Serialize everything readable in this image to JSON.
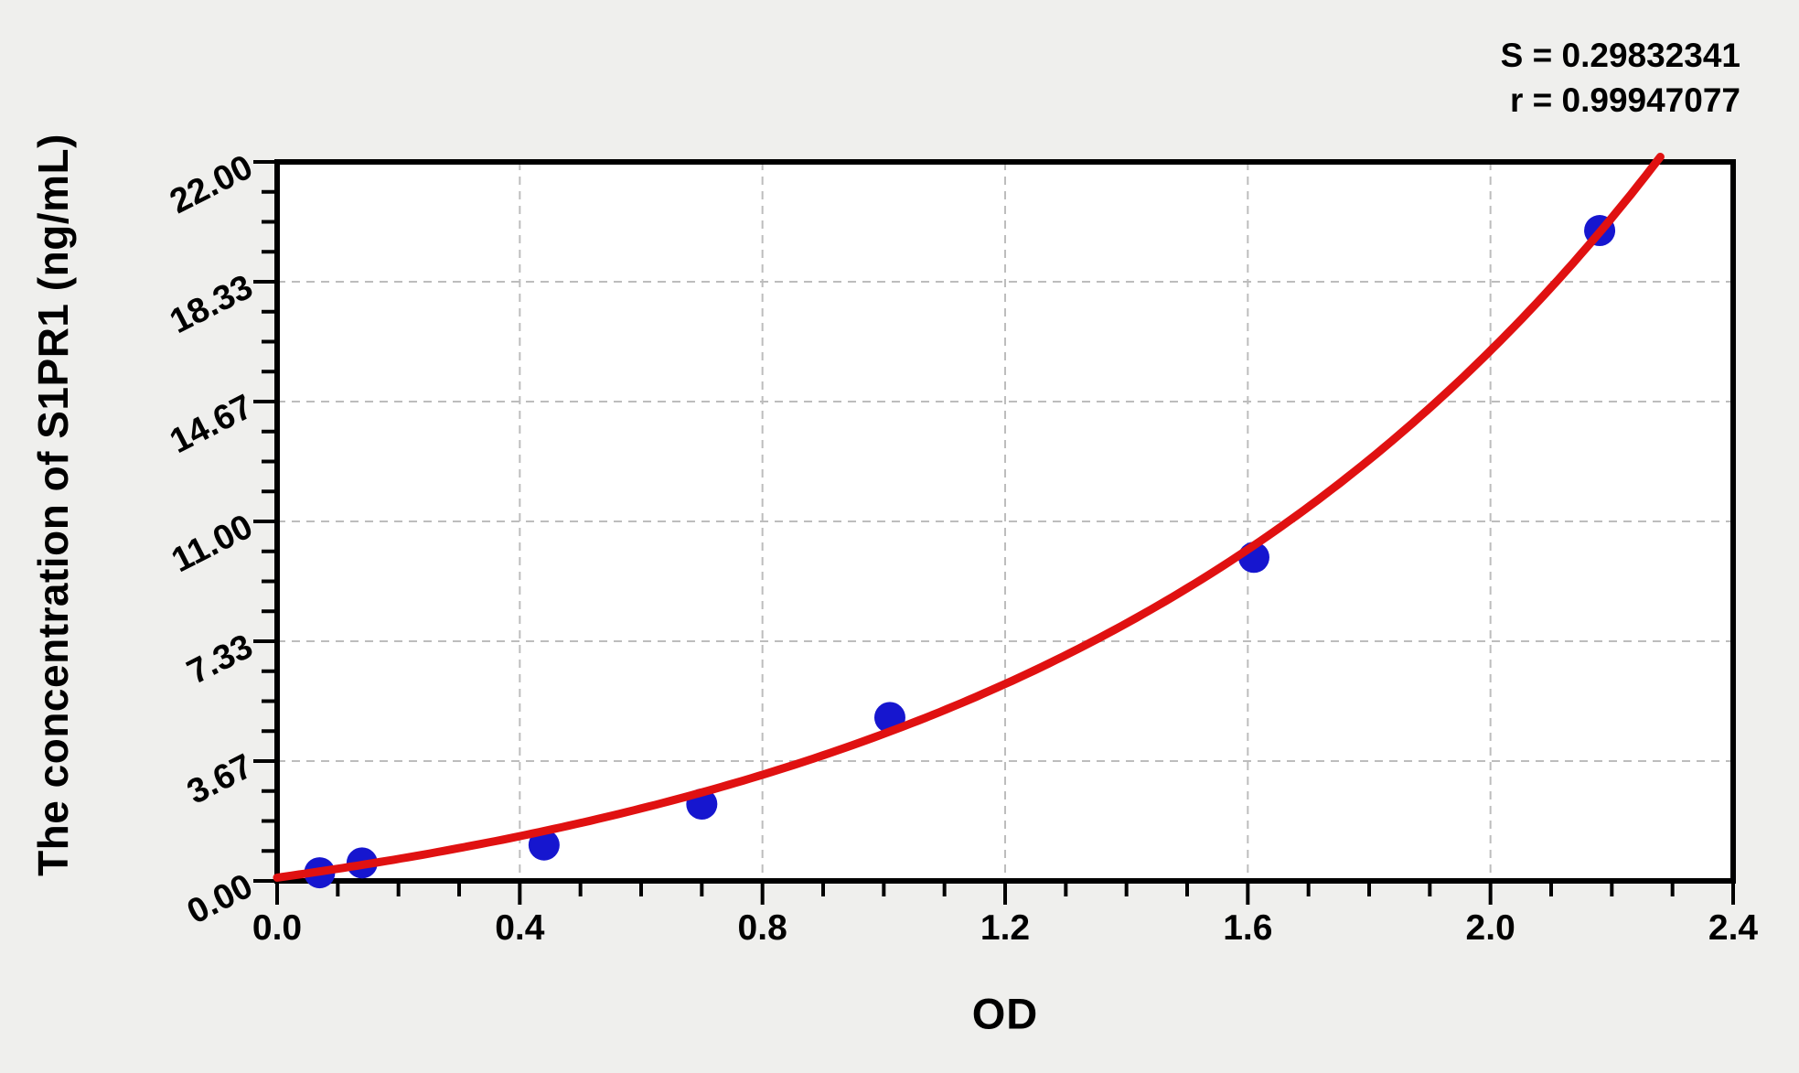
{
  "annotations": {
    "s_line": "S = 0.29832341",
    "r_line": "r = 0.99947077"
  },
  "chart_data": {
    "type": "scatter",
    "title": "",
    "xlabel": "OD",
    "ylabel": "The concentration of S1PR1 (ng/mL)",
    "xlim": [
      0.0,
      2.4
    ],
    "ylim": [
      0.0,
      22.0
    ],
    "x_tick_values": [
      0.0,
      0.4,
      0.8,
      1.2,
      1.6,
      2.0,
      2.4
    ],
    "x_tick_labels": [
      "0.0",
      "0.4",
      "0.8",
      "1.2",
      "1.6",
      "2.0",
      "2.4"
    ],
    "x_minor_tick_step": 0.1,
    "y_tick_values": [
      0.0,
      3.6667,
      7.3333,
      11.0,
      14.6667,
      18.3333,
      22.0
    ],
    "y_tick_labels": [
      "0.00",
      "3.67",
      "7.33",
      "11.00",
      "14.67",
      "18.33",
      "22.00"
    ],
    "y_minor_divisions": 4,
    "grid": {
      "show": true,
      "style": "dashed",
      "at": "major_ticks",
      "legend": "none"
    },
    "series": [
      {
        "name": "standard-points",
        "type": "scatter",
        "points": [
          [
            0.07,
            0.25
          ],
          [
            0.14,
            0.55
          ],
          [
            0.44,
            1.1
          ],
          [
            0.7,
            2.35
          ],
          [
            1.01,
            5.0
          ],
          [
            1.61,
            9.9
          ],
          [
            2.18,
            19.9
          ]
        ]
      },
      {
        "name": "fit-curve",
        "type": "line",
        "fit": {
          "formula": "y = a*exp(b*x) + c",
          "a": 2.644,
          "b": 0.98,
          "c": -2.544,
          "x_start": 0.0,
          "x_end": 2.282
        }
      }
    ],
    "stats": {
      "S": "0.29832341",
      "r": "0.99947077"
    },
    "colors": {
      "curve": "#e01111",
      "points": "#1616cf",
      "grid": "#bdbdbd",
      "axis": "#000000",
      "plot_background": "#ffffff",
      "page_background": "#efefed"
    }
  }
}
